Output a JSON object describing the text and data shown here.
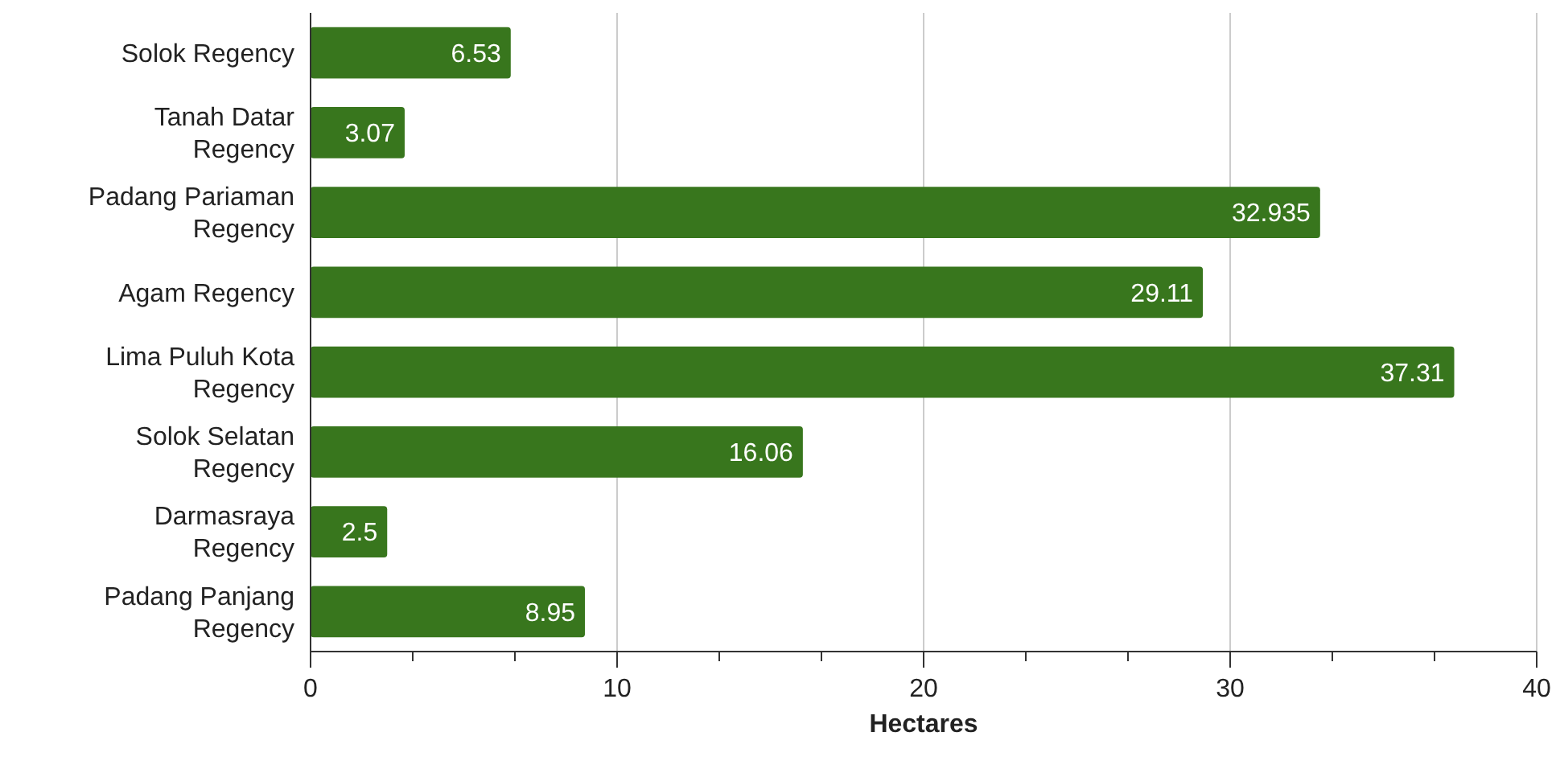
{
  "chart_data": {
    "type": "bar",
    "orientation": "horizontal",
    "xlabel": "Hectares",
    "categories": [
      "Solok Regency",
      "Tanah Datar Regency",
      "Padang Pariaman Regency",
      "Agam Regency",
      "Lima Puluh Kota Regency",
      "Solok Selatan Regency",
      "Darmasraya Regency",
      "Padang Panjang Regency"
    ],
    "values": [
      6.53,
      3.07,
      32.935,
      29.11,
      37.31,
      16.06,
      2.5,
      8.95
    ],
    "color": "#38761d",
    "xlim": [
      0,
      40
    ],
    "xticks": [
      0,
      {
        "value": 3.333,
        "label": null
      },
      {
        "value": 6.667,
        "label": null
      },
      10,
      {
        "value": 13.333,
        "label": null
      },
      {
        "value": 16.667,
        "label": null
      },
      20,
      {
        "value": 23.333,
        "label": null
      },
      {
        "value": 26.667,
        "label": null
      },
      30,
      {
        "value": 33.333,
        "label": null
      },
      {
        "value": 36.667,
        "label": null
      },
      40
    ],
    "grid": "x",
    "data_labels": true
  }
}
